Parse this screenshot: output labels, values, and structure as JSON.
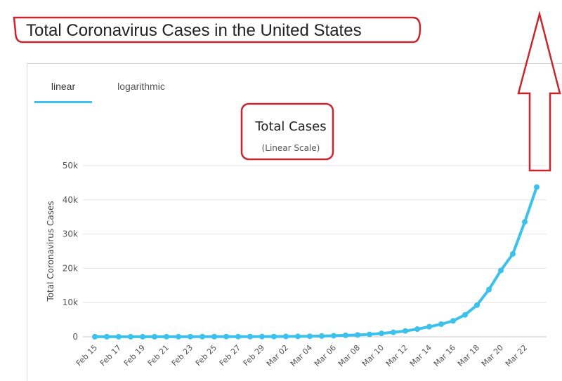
{
  "page": {
    "heading": "Total Coronavirus Cases in the United States"
  },
  "tabs": [
    {
      "label": "linear",
      "active": true
    },
    {
      "label": "logarithmic",
      "active": false
    }
  ],
  "colors": {
    "series": "#3cc1ec",
    "annotation": "#c8262e",
    "active_tab": "#40c0ec",
    "grid": "#e6e6e6"
  },
  "chart_data": {
    "type": "line",
    "title": "Total Cases",
    "subtitle": "(Linear Scale)",
    "ylabel": "Total Coronavirus Cases",
    "xlabel": "",
    "ylim": [
      0,
      50000
    ],
    "yticks": [
      0,
      10000,
      20000,
      30000,
      40000,
      50000
    ],
    "ytick_labels": [
      "0",
      "10k",
      "20k",
      "30k",
      "40k",
      "50k"
    ],
    "x_tick_labels": [
      "Feb 15",
      "Feb 17",
      "Feb 19",
      "Feb 21",
      "Feb 23",
      "Feb 25",
      "Feb 27",
      "Feb 29",
      "Mar 02",
      "Mar 04",
      "Mar 06",
      "Mar 08",
      "Mar 10",
      "Mar 12",
      "Mar 14",
      "Mar 16",
      "Mar 18",
      "Mar 20",
      "Mar 22"
    ],
    "grid": true,
    "legend": "none",
    "series": [
      {
        "x": [
          "Feb 15",
          "Feb 16",
          "Feb 17",
          "Feb 18",
          "Feb 19",
          "Feb 20",
          "Feb 21",
          "Feb 22",
          "Feb 23",
          "Feb 24",
          "Feb 25",
          "Feb 26",
          "Feb 27",
          "Feb 28",
          "Feb 29",
          "Mar 01",
          "Mar 02",
          "Mar 03",
          "Mar 04",
          "Mar 05",
          "Mar 06",
          "Mar 07",
          "Mar 08",
          "Mar 09",
          "Mar 10",
          "Mar 11",
          "Mar 12",
          "Mar 13",
          "Mar 14",
          "Mar 15",
          "Mar 16",
          "Mar 17",
          "Mar 18",
          "Mar 19",
          "Mar 20",
          "Mar 21",
          "Mar 22",
          "Mar 23"
        ],
        "values": [
          15,
          15,
          15,
          15,
          15,
          15,
          35,
          35,
          35,
          53,
          53,
          59,
          60,
          62,
          68,
          75,
          100,
          124,
          158,
          221,
          319,
          435,
          541,
          704,
          994,
          1301,
          1697,
          2247,
          2943,
          3680,
          4663,
          6411,
          9259,
          13789,
          19383,
          24207,
          33566,
          43734
        ]
      }
    ]
  }
}
